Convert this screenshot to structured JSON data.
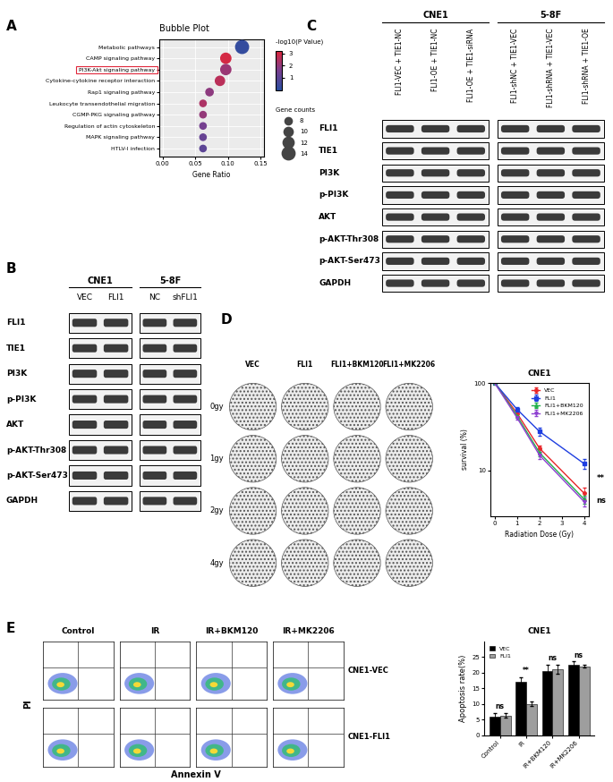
{
  "panel_labels": [
    "A",
    "B",
    "C",
    "D",
    "E"
  ],
  "chart_data": [
    {
      "type": "scatter",
      "title": "Bubble Plot",
      "x_label": "Gene Ratio",
      "categories": [
        "Metabolic pathways",
        "CAMP signaling pathway",
        "PI3K-Akt signaling pathway",
        "Cytokine-cytokine receptor interaction",
        "Rap1 signaling pathway",
        "Leukocyte transendothelial migration",
        "CGMP-PKG signaling pathway",
        "Regulation of actin cytoskeleton",
        "MAPK signaling pathway",
        "HTLV-I infection"
      ],
      "x": [
        0.122,
        0.097,
        0.097,
        0.088,
        0.072,
        0.062,
        0.062,
        0.062,
        0.062,
        0.062
      ],
      "gene_counts": [
        14,
        11,
        11,
        10,
        8,
        7,
        7,
        7,
        7,
        7
      ],
      "neg_log10_p": [
        0.2,
        3.0,
        2.1,
        2.6,
        1.9,
        2.4,
        2.0,
        1.5,
        1.2,
        1.0
      ],
      "size_legend_title": "Gene counts",
      "size_legend_values": [
        8,
        10,
        12,
        14
      ],
      "colorbar_title": "-log10(P Value)",
      "colorbar_range": [
        0,
        3.2
      ],
      "colorbar_ticks": [
        1,
        2,
        3
      ],
      "highlight": "PI3K-Akt signaling pathway",
      "xlim": [
        -0.005,
        0.155
      ],
      "xticks": [
        {
          "value": 0,
          "label": "0.00"
        },
        {
          "value": 0.05,
          "label": "0.05"
        },
        {
          "value": 0.1,
          "label": "0.10"
        },
        {
          "value": 0.15,
          "label": "0.15"
        }
      ],
      "grid": true
    },
    {
      "type": "line",
      "title": "CNE1",
      "x_label": "Radiation Dose (Gy)",
      "y_label": "survival (%)",
      "x": [
        0,
        1,
        2,
        4
      ],
      "series": [
        {
          "name": "VEC",
          "color": "#e8262a",
          "marker": "o",
          "values": [
            100,
            45,
            18,
            5.5
          ],
          "errors": [
            0,
            3,
            1.5,
            0.8
          ]
        },
        {
          "name": "FLI1",
          "color": "#1f3fe0",
          "marker": "s",
          "values": [
            100,
            50,
            28,
            12
          ],
          "errors": [
            0,
            3,
            3,
            1.5
          ]
        },
        {
          "name": "FLI1+BKM120",
          "color": "#22b14c",
          "marker": "^",
          "values": [
            100,
            42,
            16,
            4.7
          ],
          "errors": [
            0,
            2,
            1.5,
            0.5
          ]
        },
        {
          "name": "FLI1+MK2206",
          "color": "#8e3fd1",
          "marker": "v",
          "values": [
            100,
            40,
            15,
            4.4
          ],
          "errors": [
            0,
            2,
            1.5,
            0.5
          ]
        }
      ],
      "log": "y",
      "xlim": [
        -0.2,
        4.2
      ],
      "xticks": [
        0,
        1,
        2,
        3,
        4
      ],
      "ylim": [
        3,
        100
      ],
      "yticks": [
        10,
        100
      ],
      "legend": "upper right",
      "annotations": [
        {
          "text": "**",
          "between": [
            "FLI1",
            "VEC"
          ]
        },
        {
          "text": "ns",
          "between": [
            "FLI1+BKM120",
            "FLI1+MK2206"
          ]
        }
      ]
    },
    {
      "type": "bar",
      "title": "CNE1",
      "y_label": "Apoptosis rate(%)",
      "categories": [
        "Control",
        "IR",
        "IR+BKM120",
        "IR+MK2206"
      ],
      "series": [
        {
          "name": "VEC",
          "color": "#000000",
          "values": [
            6,
            17,
            20.5,
            22.5
          ],
          "errors": [
            1,
            1.5,
            2,
            1
          ]
        },
        {
          "name": "FLI1",
          "color": "#9e9e9e",
          "values": [
            6.3,
            10,
            21,
            22
          ],
          "errors": [
            0.8,
            0.8,
            1.5,
            0.5
          ]
        }
      ],
      "significance": [
        "ns",
        "**",
        "ns",
        "ns"
      ],
      "ylim": [
        0,
        30
      ],
      "yticks": [
        0,
        5,
        10,
        15,
        20,
        25
      ],
      "legend": "upper left"
    }
  ],
  "blots": {
    "B": {
      "groups": [
        {
          "name": "CNE1",
          "lanes": [
            "VEC",
            "FLI1"
          ]
        },
        {
          "name": "5-8F",
          "lanes": [
            "NC",
            "shFLI1"
          ]
        }
      ],
      "rows": [
        "FLI1",
        "TIE1",
        "PI3K",
        "p-PI3K",
        "AKT",
        "p-AKT-Thr308",
        "p-AKT-Ser473",
        "GAPDH"
      ]
    },
    "C": {
      "groups": [
        {
          "name": "CNE1",
          "lanes": [
            "FLI1-VEC + TIE1-NC",
            "FLI1-OE + TIE1-NC",
            "FLI1-OE + TIE1-siRNA"
          ]
        },
        {
          "name": "5-8F",
          "lanes": [
            "FLI1-shNC + TIE1-VEC",
            "FLI1-shRNA + TIE1-VEC",
            "FLI1-shRNA + TIE1-OE"
          ]
        }
      ],
      "rows": [
        "FLI1",
        "TIE1",
        "PI3K",
        "p-PI3K",
        "AKT",
        "p-AKT-Thr308",
        "p-AKT-Ser473",
        "GAPDH"
      ]
    }
  },
  "colony": {
    "columns": [
      "VEC",
      "FLI1",
      "FLI1+BKM120",
      "FLI1+MK2206"
    ],
    "rows": [
      "0gy",
      "1gy",
      "2gy",
      "4gy"
    ]
  },
  "flow": {
    "columns": [
      "Control",
      "IR",
      "IR+BKM120",
      "IR+MK2206"
    ],
    "rows": [
      "CNE1-VEC",
      "CNE1-FLI1"
    ],
    "y_label": "PI",
    "x_label": "Annexin V"
  }
}
